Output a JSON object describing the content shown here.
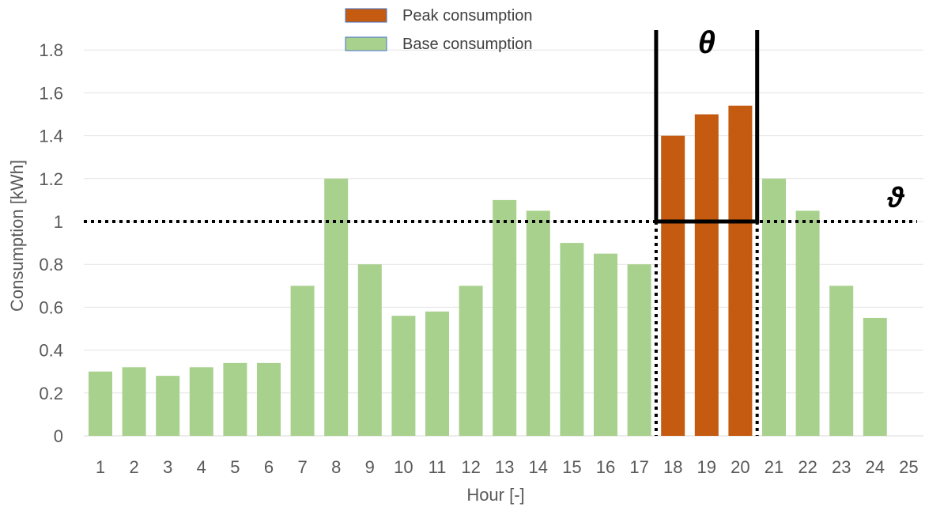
{
  "chart_data": {
    "type": "bar",
    "categories": [
      "1",
      "2",
      "3",
      "4",
      "5",
      "6",
      "7",
      "8",
      "9",
      "10",
      "11",
      "12",
      "13",
      "14",
      "15",
      "16",
      "17",
      "18",
      "19",
      "20",
      "21",
      "22",
      "23",
      "24",
      "25"
    ],
    "series": [
      {
        "name": "Base consumption",
        "color": "#a9d18e",
        "values": [
          0.3,
          0.32,
          0.28,
          0.32,
          0.34,
          0.34,
          0.7,
          1.2,
          0.8,
          0.56,
          0.58,
          0.7,
          1.1,
          1.05,
          0.9,
          0.85,
          0.8,
          null,
          null,
          null,
          1.2,
          1.05,
          0.7,
          0.55,
          null
        ]
      },
      {
        "name": "Peak consumption",
        "color": "#c55a11",
        "values": [
          null,
          null,
          null,
          null,
          null,
          null,
          null,
          null,
          null,
          null,
          null,
          null,
          null,
          null,
          null,
          null,
          null,
          1.4,
          1.5,
          1.54,
          null,
          null,
          null,
          null,
          null
        ]
      }
    ],
    "xlabel": "Hour [-]",
    "ylabel": "Consumption [kWh]",
    "ylim": [
      0,
      1.9
    ],
    "yticks": [
      0,
      0.2,
      0.4,
      0.6,
      0.8,
      1,
      1.2,
      1.4,
      1.6,
      1.8
    ],
    "ytick_labels": [
      "0",
      "0.2",
      "0.4",
      "0.6",
      "0.8",
      "1",
      "1.2",
      "1.4",
      "1.6",
      "1.8"
    ],
    "grid": true,
    "legend_position": "top-center",
    "annotations": {
      "threshold": {
        "value": 1,
        "label": "ϑ"
      },
      "peak_window": {
        "from_hour": 17.5,
        "to_hour": 20.5,
        "label": "θ"
      }
    }
  }
}
